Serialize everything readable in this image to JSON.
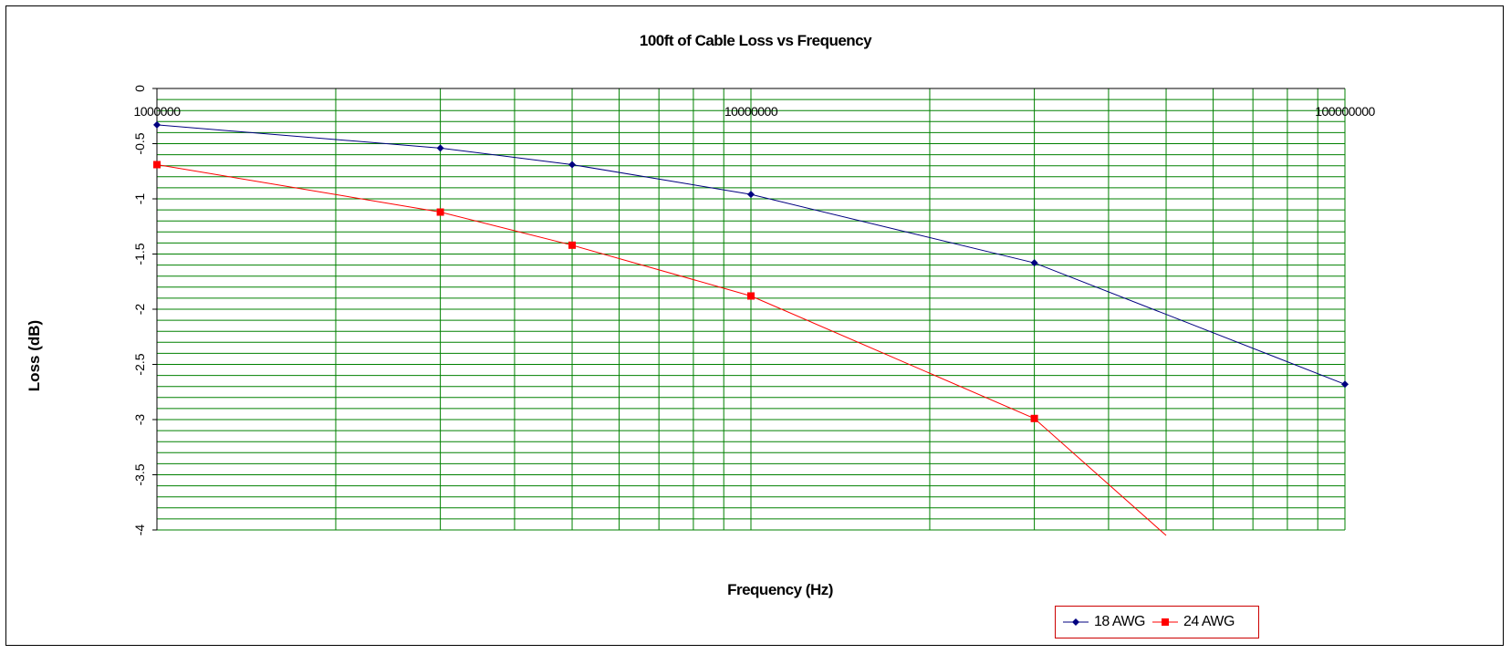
{
  "chart_data": {
    "type": "line",
    "title": "100ft of Cable Loss vs Frequency",
    "xlabel": "Frequency (Hz)",
    "ylabel": "Loss (dB)",
    "x_scale": "log",
    "xlim": [
      1000000,
      100000000
    ],
    "ylim": [
      -4,
      0
    ],
    "x_tick_labels": [
      "1000000",
      "10000000",
      "100000000"
    ],
    "y_tick_labels": [
      "0",
      "-0.5",
      "-1",
      "-1.5",
      "-2",
      "-2.5",
      "-3",
      "-3.5",
      "-4"
    ],
    "grid": true,
    "legend_position": "bottom-right",
    "series": [
      {
        "name": "18 AWG",
        "color": "#000080",
        "marker": "diamond",
        "x": [
          1000000,
          3000000,
          5000000,
          10000000,
          30000000,
          100000000
        ],
        "y": [
          -0.33,
          -0.54,
          -0.69,
          -0.96,
          -1.58,
          -2.68
        ]
      },
      {
        "name": "24 AWG",
        "color": "#ff0000",
        "marker": "square",
        "x": [
          1000000,
          3000000,
          5000000,
          10000000,
          30000000,
          50000000
        ],
        "y": [
          -0.69,
          -1.12,
          -1.42,
          -1.88,
          -2.99,
          -4.05
        ]
      }
    ]
  }
}
